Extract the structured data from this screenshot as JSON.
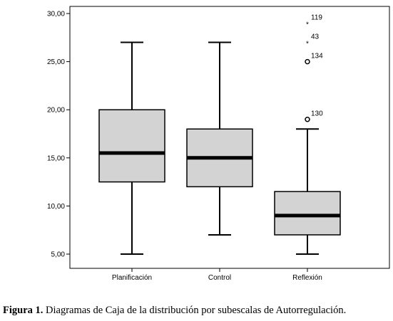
{
  "chart_data": {
    "type": "boxplot",
    "categories": [
      "Planificación",
      "Control",
      "Reflexión"
    ],
    "y_ticks": [
      "5,00",
      "10,00",
      "15,00",
      "20,00",
      "25,00",
      "30,00"
    ],
    "y_tick_values": [
      5,
      10,
      15,
      20,
      25,
      30
    ],
    "ylim": [
      4,
      31
    ],
    "grid": false,
    "legend": "none",
    "box_fill": "#d3d3d3",
    "boxes": [
      {
        "category": "Planificación",
        "min": 5,
        "q1": 12.5,
        "median": 15.5,
        "q3": 20,
        "max": 27,
        "outliers": []
      },
      {
        "category": "Control",
        "min": 7,
        "q1": 12,
        "median": 15,
        "q3": 18,
        "max": 27,
        "outliers": []
      },
      {
        "category": "Reflexión",
        "min": 5,
        "q1": 7,
        "median": 9,
        "q3": 11.5,
        "max": 18,
        "outliers": [
          {
            "value": 29,
            "label": "119",
            "marker": "asterisk"
          },
          {
            "value": 27,
            "label": "43",
            "marker": "asterisk"
          },
          {
            "value": 25,
            "label": "134",
            "marker": "circle"
          },
          {
            "value": 19,
            "label": "130",
            "marker": "circle"
          }
        ]
      }
    ]
  },
  "caption": {
    "prefix": "Figura 1.",
    "text": " Diagramas de Caja de la distribución por subescalas de Autorregulación."
  }
}
